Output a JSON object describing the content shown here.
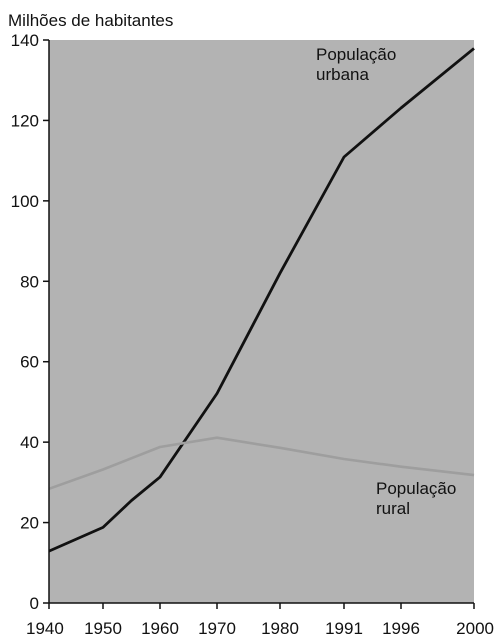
{
  "chart_data": {
    "type": "line",
    "ylabel": "Milhões de habitantes",
    "x_ticks": [
      "1940",
      "1950",
      "1960",
      "1970",
      "1980",
      "1991",
      "1996",
      "2000"
    ],
    "y_ticks": [
      0,
      20,
      40,
      60,
      80,
      100,
      120,
      140
    ],
    "ylim": [
      0,
      140
    ],
    "grid": false,
    "series": [
      {
        "name_lines": [
          "População",
          "urbana"
        ],
        "color": "#111111",
        "points": [
          {
            "x": 1940,
            "y": 12.9
          },
          {
            "x": 1950,
            "y": 18.8
          },
          {
            "x": 1955,
            "y": 25.5
          },
          {
            "x": 1960,
            "y": 31.3
          },
          {
            "x": 1970,
            "y": 52.1
          },
          {
            "x": 1980,
            "y": 82.0
          },
          {
            "x": 1991,
            "y": 110.9
          },
          {
            "x": 1996,
            "y": 123.1
          },
          {
            "x": 2000,
            "y": 137.9
          }
        ]
      },
      {
        "name_lines": [
          "População",
          "rural"
        ],
        "color": "#9e9e9e",
        "points": [
          {
            "x": 1940,
            "y": 28.4
          },
          {
            "x": 1950,
            "y": 33.2
          },
          {
            "x": 1960,
            "y": 38.8
          },
          {
            "x": 1970,
            "y": 41.1
          },
          {
            "x": 1980,
            "y": 38.6
          },
          {
            "x": 1991,
            "y": 35.8
          },
          {
            "x": 1996,
            "y": 33.9
          },
          {
            "x": 2000,
            "y": 31.8
          }
        ]
      }
    ]
  },
  "colors": {
    "plot_background": "#b3b3b3",
    "axis": "#111111"
  }
}
